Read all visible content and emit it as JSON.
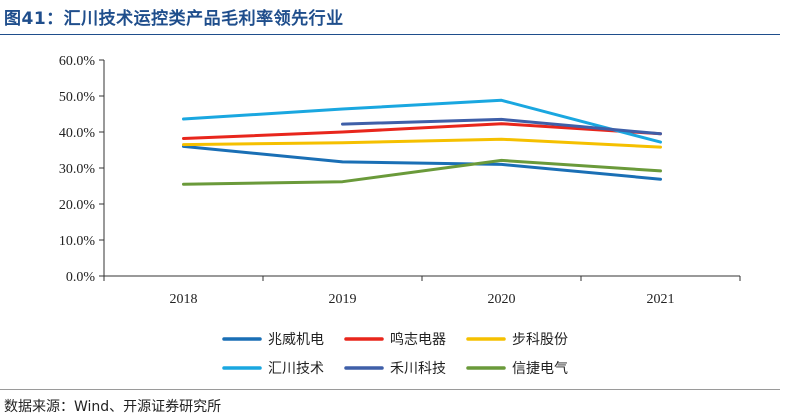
{
  "header": {
    "title": "图41：汇川技术运控类产品毛利率领先行业"
  },
  "footer": {
    "source": "数据来源：Wind、开源证券研究所"
  },
  "chart_data": {
    "type": "line",
    "title": "",
    "xlabel": "",
    "ylabel": "",
    "categories": [
      "2018",
      "2019",
      "2020",
      "2021"
    ],
    "ylim": [
      0,
      60
    ],
    "y_ticks": [
      "0.0%",
      "10.0%",
      "20.0%",
      "30.0%",
      "40.0%",
      "50.0%",
      "60.0%"
    ],
    "grid": false,
    "legend_position": "bottom",
    "series": [
      {
        "name": "兆威机电",
        "color": "#1a6fb5",
        "values": [
          36.0,
          31.7,
          31.0,
          26.9
        ]
      },
      {
        "name": "鸣志电器",
        "color": "#e8261c",
        "values": [
          38.2,
          40.0,
          42.3,
          39.5
        ]
      },
      {
        "name": "步科股份",
        "color": "#f5c000",
        "values": [
          36.5,
          37.0,
          38.0,
          35.8
        ]
      },
      {
        "name": "汇川技术",
        "color": "#1aa7e0",
        "values": [
          43.6,
          46.4,
          48.8,
          37.2
        ]
      },
      {
        "name": "禾川科技",
        "color": "#3f5fa8",
        "values": [
          null,
          42.2,
          43.5,
          39.5
        ]
      },
      {
        "name": "信捷电气",
        "color": "#6a9a3a",
        "values": [
          25.5,
          26.2,
          32.1,
          29.2
        ]
      }
    ]
  }
}
